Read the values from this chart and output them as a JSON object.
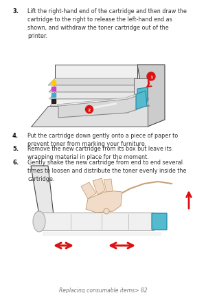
{
  "bg_color": "#ffffff",
  "footer_text": "Replacing consumable items> 82",
  "steps": [
    {
      "number": "3.",
      "text": "Lift the right-hand end of the cartridge and then draw the\ncartridge to the right to release the left-hand end as\nshown, and withdraw the toner cartridge out of the\nprinter."
    },
    {
      "number": "4.",
      "text": "Put the cartridge down gently onto a piece of paper to\nprevent toner from marking your furniture."
    },
    {
      "number": "5.",
      "text": "Remove the new cartridge from its box but leave its\nwrapping material in place for the moment."
    },
    {
      "number": "6.",
      "text": "Gently shake the new cartridge from end to end several\ntimes to loosen and distribute the toner evenly inside the\ncartridge."
    }
  ],
  "text_color": "#333333",
  "num_color": "#111111",
  "fig_width": 3.0,
  "fig_height": 4.27,
  "dpi": 100
}
